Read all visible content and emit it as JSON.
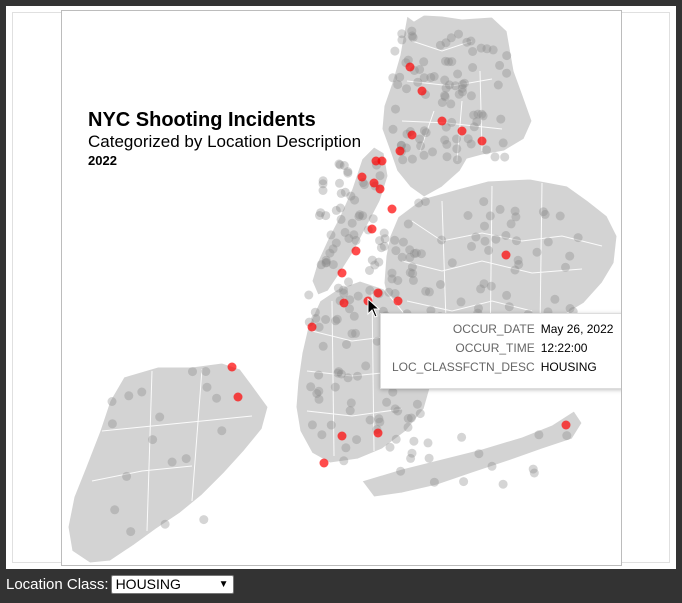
{
  "title": "NYC Shooting Incidents",
  "subtitle": "Categorized by Location Description",
  "year": "2022",
  "tooltip": {
    "rows": [
      {
        "key": "OCCUR_DATE",
        "value": "May 26, 2022"
      },
      {
        "key": "OCCUR_TIME",
        "value": "12:22:00"
      },
      {
        "key": "LOC_CLASSFCTN_DESC",
        "value": "HOUSING"
      }
    ]
  },
  "controls": {
    "label": "Location Class:",
    "selected": "HOUSING"
  },
  "colors": {
    "highlight": "#ff0000",
    "other": "#888888",
    "land": "#d3d3d3",
    "background": "#333333"
  }
}
